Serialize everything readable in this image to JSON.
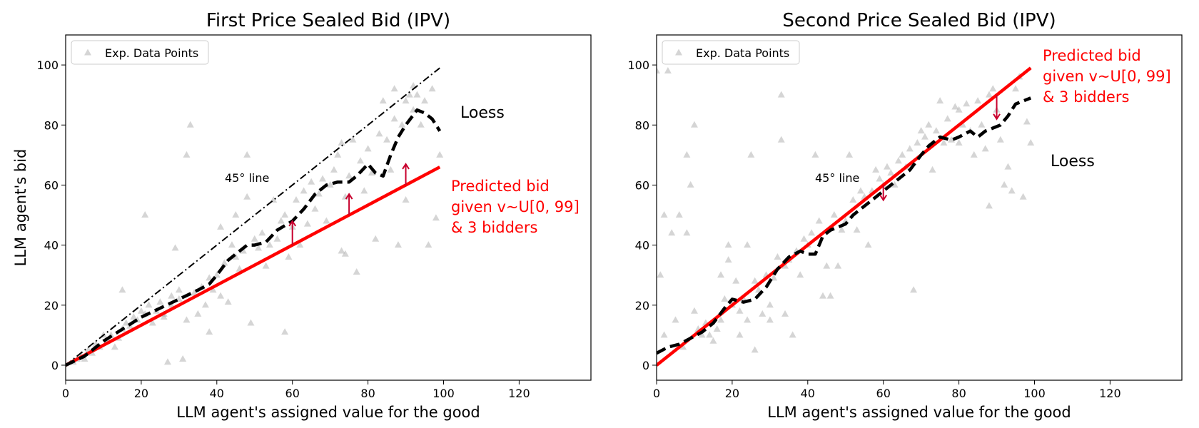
{
  "chart_data": [
    {
      "type": "scatter",
      "title": "First Price Sealed Bid (IPV)",
      "xlabel": "LLM agent's assigned value for the good",
      "ylabel": "LLM agent's bid",
      "xlim": [
        0,
        139
      ],
      "ylim": [
        -5,
        110
      ],
      "xticks": [
        0,
        20,
        40,
        60,
        80,
        100,
        120
      ],
      "yticks": [
        0,
        20,
        40,
        60,
        80,
        100
      ],
      "legend": {
        "label": "Exp. Data Points",
        "placement": "top-left"
      },
      "line_45_label": "45° line",
      "loess_label": "Loess",
      "predicted_label": [
        "Predicted bid",
        "given v~U[0, 99]",
        "& 3 bidders"
      ],
      "points": [
        [
          2,
          1
        ],
        [
          3,
          2
        ],
        [
          4,
          3
        ],
        [
          5,
          2
        ],
        [
          6,
          5
        ],
        [
          7,
          4
        ],
        [
          8,
          7
        ],
        [
          9,
          6
        ],
        [
          10,
          10
        ],
        [
          11,
          8
        ],
        [
          12,
          10
        ],
        [
          13,
          6
        ],
        [
          14,
          9
        ],
        [
          15,
          12
        ],
        [
          15,
          25
        ],
        [
          16,
          14
        ],
        [
          17,
          13
        ],
        [
          18,
          16
        ],
        [
          19,
          15
        ],
        [
          20,
          18
        ],
        [
          21,
          17
        ],
        [
          21,
          50
        ],
        [
          22,
          20
        ],
        [
          23,
          14
        ],
        [
          24,
          18
        ],
        [
          25,
          21
        ],
        [
          26,
          17
        ],
        [
          26,
          16
        ],
        [
          27,
          1
        ],
        [
          28,
          20
        ],
        [
          28,
          23
        ],
        [
          29,
          39
        ],
        [
          30,
          22
        ],
        [
          30,
          25
        ],
        [
          31,
          2
        ],
        [
          32,
          15
        ],
        [
          32,
          70
        ],
        [
          33,
          80
        ],
        [
          34,
          24
        ],
        [
          35,
          17
        ],
        [
          36,
          26
        ],
        [
          37,
          20
        ],
        [
          38,
          29
        ],
        [
          38,
          11
        ],
        [
          39,
          25
        ],
        [
          40,
          30
        ],
        [
          41,
          46
        ],
        [
          41,
          23
        ],
        [
          42,
          34
        ],
        [
          43,
          21
        ],
        [
          44,
          40
        ],
        [
          45,
          36
        ],
        [
          45,
          50
        ],
        [
          46,
          32
        ],
        [
          47,
          38
        ],
        [
          48,
          56
        ],
        [
          48,
          70
        ],
        [
          49,
          14
        ],
        [
          50,
          42
        ],
        [
          51,
          39
        ],
        [
          52,
          44
        ],
        [
          53,
          33
        ],
        [
          54,
          40
        ],
        [
          55,
          55
        ],
        [
          56,
          42
        ],
        [
          57,
          48
        ],
        [
          58,
          11
        ],
        [
          58,
          50
        ],
        [
          59,
          36
        ],
        [
          60,
          46
        ],
        [
          61,
          55
        ],
        [
          62,
          40
        ],
        [
          63,
          58
        ],
        [
          64,
          47
        ],
        [
          65,
          61
        ],
        [
          66,
          52
        ],
        [
          67,
          57
        ],
        [
          68,
          62
        ],
        [
          69,
          48
        ],
        [
          70,
          60
        ],
        [
          71,
          65
        ],
        [
          72,
          70
        ],
        [
          73,
          74
        ],
        [
          73,
          38
        ],
        [
          74,
          56
        ],
        [
          74,
          37
        ],
        [
          75,
          63
        ],
        [
          76,
          75
        ],
        [
          77,
          31
        ],
        [
          78,
          68
        ],
        [
          79,
          58
        ],
        [
          80,
          72
        ],
        [
          81,
          64
        ],
        [
          82,
          42
        ],
        [
          83,
          77
        ],
        [
          84,
          88
        ],
        [
          85,
          75
        ],
        [
          86,
          65
        ],
        [
          87,
          82
        ],
        [
          88,
          40
        ],
        [
          89,
          80
        ],
        [
          90,
          88
        ],
        [
          90,
          55
        ],
        [
          91,
          90
        ],
        [
          92,
          85
        ],
        [
          93,
          90
        ],
        [
          94,
          80
        ],
        [
          95,
          88
        ],
        [
          96,
          40
        ],
        [
          97,
          92
        ],
        [
          98,
          49
        ],
        [
          99,
          70
        ],
        [
          87,
          92
        ],
        [
          92,
          93
        ]
      ],
      "loess": [
        [
          0,
          0
        ],
        [
          5,
          3
        ],
        [
          10,
          8
        ],
        [
          15,
          12
        ],
        [
          20,
          16
        ],
        [
          25,
          19
        ],
        [
          30,
          22
        ],
        [
          35,
          25
        ],
        [
          38,
          27
        ],
        [
          40,
          30
        ],
        [
          43,
          35
        ],
        [
          46,
          38
        ],
        [
          48,
          40
        ],
        [
          50,
          40
        ],
        [
          53,
          41
        ],
        [
          56,
          45
        ],
        [
          60,
          48
        ],
        [
          63,
          52
        ],
        [
          66,
          57
        ],
        [
          69,
          60
        ],
        [
          72,
          61
        ],
        [
          75,
          61
        ],
        [
          77,
          63
        ],
        [
          80,
          67
        ],
        [
          82,
          64
        ],
        [
          84,
          63
        ],
        [
          86,
          70
        ],
        [
          88,
          76
        ],
        [
          90,
          80
        ],
        [
          93,
          85
        ],
        [
          95,
          84
        ],
        [
          97,
          82
        ],
        [
          99,
          78
        ]
      ],
      "predicted_line": [
        [
          0,
          0
        ],
        [
          99,
          66
        ]
      ],
      "line_45": [
        [
          0,
          0
        ],
        [
          99,
          99
        ]
      ],
      "arrows": [
        [
          60,
          40,
          48
        ],
        [
          75,
          50,
          57
        ],
        [
          90,
          60,
          67
        ]
      ]
    },
    {
      "type": "scatter",
      "title": "Second Price Sealed Bid (IPV)",
      "xlabel": "LLM agent's assigned value for the good",
      "ylabel": "",
      "xlim": [
        0,
        139
      ],
      "ylim": [
        -5,
        110
      ],
      "xticks": [
        0,
        20,
        40,
        60,
        80,
        100,
        120
      ],
      "yticks": [
        0,
        20,
        40,
        60,
        80,
        100
      ],
      "legend": {
        "label": "Exp. Data Points",
        "placement": "top-left"
      },
      "line_45_label": "45° line",
      "loess_label": "Loess",
      "predicted_label": [
        "Predicted bid",
        "given v~U[0, 99]",
        "& 3 bidders"
      ],
      "points": [
        [
          0,
          98
        ],
        [
          1,
          30
        ],
        [
          2,
          50
        ],
        [
          2,
          10
        ],
        [
          3,
          98
        ],
        [
          4,
          44
        ],
        [
          5,
          15
        ],
        [
          6,
          50
        ],
        [
          7,
          6
        ],
        [
          8,
          44
        ],
        [
          8,
          70
        ],
        [
          9,
          60
        ],
        [
          10,
          80
        ],
        [
          10,
          18
        ],
        [
          11,
          12
        ],
        [
          12,
          10
        ],
        [
          13,
          14
        ],
        [
          14,
          10
        ],
        [
          15,
          8
        ],
        [
          16,
          12
        ],
        [
          17,
          30
        ],
        [
          17,
          15
        ],
        [
          18,
          22
        ],
        [
          19,
          35
        ],
        [
          19,
          40
        ],
        [
          20,
          20
        ],
        [
          21,
          28
        ],
        [
          22,
          18
        ],
        [
          22,
          10
        ],
        [
          23,
          22
        ],
        [
          24,
          40
        ],
        [
          24,
          15
        ],
        [
          25,
          70
        ],
        [
          26,
          5
        ],
        [
          26,
          28
        ],
        [
          27,
          25
        ],
        [
          28,
          17
        ],
        [
          29,
          30
        ],
        [
          30,
          20
        ],
        [
          30,
          15
        ],
        [
          31,
          29
        ],
        [
          32,
          36
        ],
        [
          33,
          75
        ],
        [
          33,
          90
        ],
        [
          34,
          17
        ],
        [
          34,
          33
        ],
        [
          35,
          35
        ],
        [
          36,
          10
        ],
        [
          37,
          38
        ],
        [
          38,
          30
        ],
        [
          39,
          42
        ],
        [
          40,
          40
        ],
        [
          41,
          44
        ],
        [
          42,
          70
        ],
        [
          43,
          48
        ],
        [
          44,
          23
        ],
        [
          45,
          33
        ],
        [
          46,
          23
        ],
        [
          47,
          50
        ],
        [
          48,
          33
        ],
        [
          49,
          45
        ],
        [
          50,
          48
        ],
        [
          51,
          70
        ],
        [
          52,
          55
        ],
        [
          53,
          45
        ],
        [
          54,
          58
        ],
        [
          55,
          56
        ],
        [
          56,
          40
        ],
        [
          57,
          58
        ],
        [
          58,
          65
        ],
        [
          59,
          62
        ],
        [
          60,
          60
        ],
        [
          61,
          66
        ],
        [
          62,
          64
        ],
        [
          63,
          60
        ],
        [
          64,
          68
        ],
        [
          65,
          70
        ],
        [
          66,
          66
        ],
        [
          67,
          72
        ],
        [
          68,
          25
        ],
        [
          69,
          74
        ],
        [
          70,
          78
        ],
        [
          71,
          76
        ],
        [
          72,
          80
        ],
        [
          73,
          65
        ],
        [
          74,
          78
        ],
        [
          75,
          88
        ],
        [
          76,
          74
        ],
        [
          77,
          82
        ],
        [
          78,
          75
        ],
        [
          79,
          86
        ],
        [
          80,
          85
        ],
        [
          80,
          74
        ],
        [
          81,
          80
        ],
        [
          82,
          87
        ],
        [
          83,
          78
        ],
        [
          84,
          70
        ],
        [
          85,
          88
        ],
        [
          86,
          80
        ],
        [
          87,
          72
        ],
        [
          88,
          53
        ],
        [
          88,
          90
        ],
        [
          89,
          92
        ],
        [
          90,
          85
        ],
        [
          91,
          75
        ],
        [
          92,
          60
        ],
        [
          93,
          66
        ],
        [
          94,
          58
        ],
        [
          95,
          92
        ],
        [
          96,
          96
        ],
        [
          97,
          56
        ],
        [
          98,
          81
        ],
        [
          99,
          74
        ]
      ],
      "loess": [
        [
          0,
          4
        ],
        [
          3,
          6
        ],
        [
          6,
          7
        ],
        [
          9,
          9
        ],
        [
          12,
          11
        ],
        [
          15,
          14
        ],
        [
          18,
          19
        ],
        [
          20,
          22
        ],
        [
          23,
          21
        ],
        [
          26,
          22
        ],
        [
          29,
          26
        ],
        [
          32,
          32
        ],
        [
          35,
          36
        ],
        [
          38,
          38
        ],
        [
          40,
          37
        ],
        [
          42,
          37
        ],
        [
          44,
          43
        ],
        [
          46,
          45
        ],
        [
          48,
          46
        ],
        [
          50,
          47
        ],
        [
          52,
          50
        ],
        [
          55,
          53
        ],
        [
          58,
          56
        ],
        [
          61,
          59
        ],
        [
          64,
          62
        ],
        [
          67,
          65
        ],
        [
          70,
          70
        ],
        [
          72,
          73
        ],
        [
          75,
          76
        ],
        [
          78,
          75
        ],
        [
          80,
          76
        ],
        [
          83,
          78
        ],
        [
          85,
          76
        ],
        [
          87,
          78
        ],
        [
          89,
          79
        ],
        [
          91,
          80
        ],
        [
          93,
          83
        ],
        [
          95,
          87
        ],
        [
          97,
          88
        ],
        [
          99,
          89
        ]
      ],
      "predicted_line": [
        [
          0,
          0
        ],
        [
          99,
          99
        ]
      ],
      "line_45": [
        [
          0,
          0
        ],
        [
          99,
          99
        ]
      ],
      "arrows": [
        [
          60,
          60,
          55
        ],
        [
          90,
          90,
          82
        ]
      ]
    }
  ]
}
